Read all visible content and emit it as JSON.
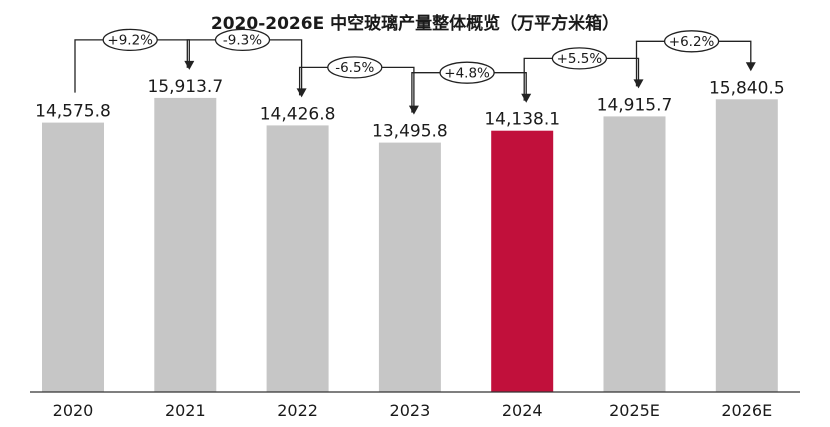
{
  "chart_data": {
    "type": "bar",
    "title": "2020-2026E 中空玻璃产量整体概览（万平方米箱）",
    "categories": [
      "2020",
      "2021",
      "2022",
      "2023",
      "2024",
      "2025E",
      "2026E"
    ],
    "values": [
      14575.8,
      15913.7,
      14426.8,
      13495.8,
      14138.1,
      14915.7,
      15840.5
    ],
    "value_labels": [
      "14,575.8",
      "15,913.7",
      "14,426.8",
      "13,495.8",
      "14,138.1",
      "14,915.7",
      "15,840.5"
    ],
    "growth_labels": [
      "+9.2%",
      "-9.3%",
      "-6.5%",
      "+4.8%",
      "+5.5%",
      "+6.2%"
    ],
    "highlight_index": 4,
    "colors": {
      "bar": "#c6c6c6",
      "highlight": "#c1103b",
      "axis": "#333333",
      "text": "#1a1a1a"
    },
    "grid": false,
    "legend": "none",
    "xlabel": "",
    "ylabel": ""
  }
}
